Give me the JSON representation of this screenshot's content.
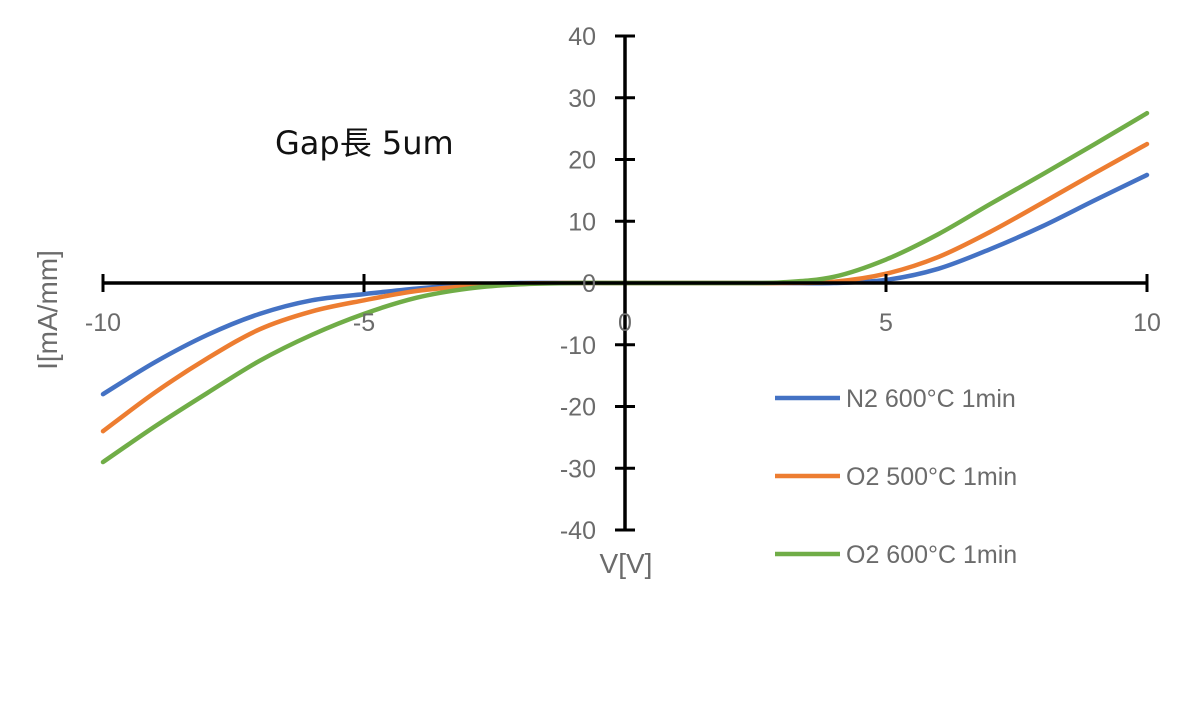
{
  "chart_data": {
    "type": "line",
    "title": "Gap長 5um",
    "xlabel": "V[V]",
    "ylabel": "I[mA/mm]",
    "xlim": [
      -10,
      10
    ],
    "ylim": [
      -40,
      40
    ],
    "x_ticks": [
      -10,
      -5,
      0,
      5,
      10
    ],
    "y_ticks": [
      -40,
      -30,
      -20,
      -10,
      0,
      10,
      20,
      30,
      40
    ],
    "grid": false,
    "legend_position": "bottom-right",
    "series": [
      {
        "name": "N2 600°C 1min",
        "color": "#4472c4",
        "x": [
          -10,
          -9,
          -8,
          -7,
          -6,
          -5,
          -4,
          -3,
          -2,
          -1,
          0,
          1,
          2,
          3,
          4,
          5,
          6,
          7,
          8,
          9,
          10
        ],
        "values": [
          -18,
          -12.8,
          -8.4,
          -5,
          -2.8,
          -1.8,
          -0.9,
          -0.3,
          0,
          0,
          0,
          0,
          0,
          0,
          0,
          0.5,
          2.3,
          5.5,
          9.2,
          13.4,
          17.5
        ]
      },
      {
        "name": "O2 500°C 1min",
        "color": "#ed7d31",
        "x": [
          -10,
          -9,
          -8,
          -7,
          -6,
          -5,
          -4,
          -3,
          -2,
          -1,
          0,
          1,
          2,
          3,
          4,
          5,
          6,
          7,
          8,
          9,
          10
        ],
        "values": [
          -24,
          -17.7,
          -12.2,
          -7.5,
          -4.6,
          -2.8,
          -1.3,
          -0.5,
          -0.1,
          0,
          0,
          0,
          0,
          0,
          0.2,
          1.5,
          4.2,
          8.3,
          13,
          17.8,
          22.5
        ]
      },
      {
        "name": "O2 600°C 1min",
        "color": "#70ad47",
        "x": [
          -10,
          -9,
          -8,
          -7,
          -6,
          -5,
          -4,
          -3,
          -2,
          -1,
          0,
          1,
          2,
          3,
          4,
          5,
          6,
          7,
          8,
          9,
          10
        ],
        "values": [
          -29,
          -23.2,
          -17.8,
          -12.6,
          -8.4,
          -5,
          -2.4,
          -0.9,
          -0.2,
          0,
          0,
          0,
          0,
          0.1,
          1,
          3.8,
          7.9,
          12.8,
          17.6,
          22.5,
          27.5
        ]
      }
    ]
  }
}
